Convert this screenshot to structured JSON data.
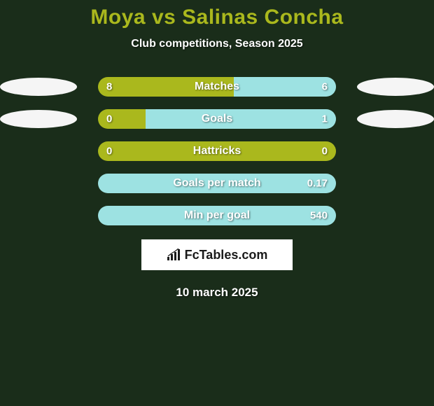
{
  "title": "Moya vs Salinas Concha",
  "subtitle": "Club competitions, Season 2025",
  "date": "10 march 2025",
  "logo_text": "FcTables.com",
  "colors": {
    "background": "#1a2d1a",
    "title": "#aab81d",
    "text": "#ffffff",
    "ellipse": "#f5f5f5",
    "bar_a": "#aab81d",
    "bar_b": "#9de2e2"
  },
  "stats": [
    {
      "label": "Matches",
      "left_val": "8",
      "right_val": "6",
      "left_pct": 57,
      "right_pct": 43,
      "left_color": "#aab81d",
      "right_color": "#9de2e2",
      "show_ellipse": true
    },
    {
      "label": "Goals",
      "left_val": "0",
      "right_val": "1",
      "left_pct": 20,
      "right_pct": 80,
      "left_color": "#aab81d",
      "right_color": "#9de2e2",
      "show_ellipse": true
    },
    {
      "label": "Hattricks",
      "left_val": "0",
      "right_val": "0",
      "left_pct": 100,
      "right_pct": 0,
      "left_color": "#aab81d",
      "right_color": "#9de2e2",
      "show_ellipse": false
    },
    {
      "label": "Goals per match",
      "left_val": "",
      "right_val": "0.17",
      "left_pct": 0,
      "right_pct": 100,
      "left_color": "#aab81d",
      "right_color": "#9de2e2",
      "show_ellipse": false
    },
    {
      "label": "Min per goal",
      "left_val": "",
      "right_val": "540",
      "left_pct": 0,
      "right_pct": 100,
      "left_color": "#aab81d",
      "right_color": "#9de2e2",
      "show_ellipse": false
    }
  ]
}
